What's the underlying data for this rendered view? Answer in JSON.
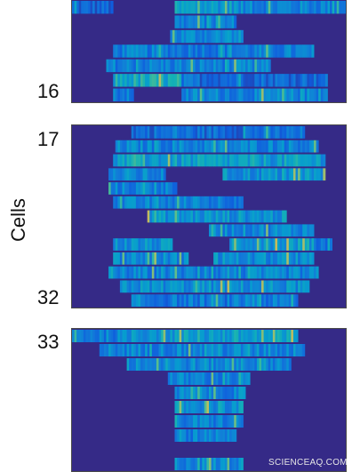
{
  "chart_data": {
    "type": "heatmap",
    "ylabel": "Cells",
    "colormap": "parula",
    "background_color": "#352a87",
    "panels": [
      {
        "row_tick_labels": [
          "16"
        ],
        "rows": [
          {
            "ranges": [
              [
                0.0,
                0.15,
                0.25
              ],
              [
                0.38,
                0.6,
                0.55
              ],
              [
                0.6,
                1.0,
                0.42
              ]
            ]
          },
          {
            "ranges": [
              [
                0.38,
                0.6,
                0.4
              ]
            ]
          },
          {
            "ranges": [
              [
                0.36,
                0.62,
                0.45
              ]
            ]
          },
          {
            "ranges": [
              [
                0.15,
                0.88,
                0.38
              ]
            ]
          },
          {
            "ranges": [
              [
                0.13,
                0.72,
                0.4
              ]
            ]
          },
          {
            "ranges": [
              [
                0.15,
                0.4,
                0.62
              ],
              [
                0.4,
                0.93,
                0.3
              ]
            ]
          },
          {
            "ranges": [
              [
                0.15,
                0.22,
                0.35
              ],
              [
                0.4,
                0.93,
                0.42
              ]
            ]
          }
        ]
      },
      {
        "row_tick_labels": [
          "17",
          "32"
        ],
        "rows": [
          {
            "ranges": [
              [
                0.22,
                0.85,
                0.3
              ]
            ]
          },
          {
            "ranges": [
              [
                0.16,
                0.9,
                0.42
              ]
            ]
          },
          {
            "ranges": [
              [
                0.15,
                0.92,
                0.55
              ]
            ]
          },
          {
            "ranges": [
              [
                0.14,
                0.34,
                0.42
              ],
              [
                0.55,
                0.92,
                0.48
              ]
            ]
          },
          {
            "ranges": [
              [
                0.14,
                0.38,
                0.4
              ]
            ]
          },
          {
            "ranges": [
              [
                0.15,
                0.62,
                0.4
              ]
            ]
          },
          {
            "ranges": [
              [
                0.28,
                0.78,
                0.5
              ]
            ]
          },
          {
            "ranges": [
              [
                0.5,
                0.88,
                0.45
              ]
            ]
          },
          {
            "ranges": [
              [
                0.15,
                0.36,
                0.48
              ],
              [
                0.58,
                0.88,
                0.55
              ],
              [
                0.88,
                0.95,
                0.35
              ]
            ]
          },
          {
            "ranges": [
              [
                0.15,
                0.42,
                0.45
              ],
              [
                0.52,
                0.88,
                0.45
              ]
            ]
          },
          {
            "ranges": [
              [
                0.14,
                0.9,
                0.4
              ]
            ]
          },
          {
            "ranges": [
              [
                0.18,
                0.86,
                0.48
              ]
            ]
          },
          {
            "ranges": [
              [
                0.22,
                0.82,
                0.35
              ]
            ]
          }
        ]
      },
      {
        "row_tick_labels": [
          "33"
        ],
        "rows": [
          {
            "ranges": [
              [
                0.0,
                0.22,
                0.4
              ],
              [
                0.22,
                0.82,
                0.55
              ]
            ]
          },
          {
            "ranges": [
              [
                0.1,
                0.85,
                0.42
              ]
            ]
          },
          {
            "ranges": [
              [
                0.2,
                0.8,
                0.45
              ]
            ]
          },
          {
            "ranges": [
              [
                0.35,
                0.65,
                0.4
              ]
            ]
          },
          {
            "ranges": [
              [
                0.38,
                0.63,
                0.42
              ]
            ]
          },
          {
            "ranges": [
              [
                0.38,
                0.62,
                0.5
              ]
            ]
          },
          {
            "ranges": [
              [
                0.38,
                0.62,
                0.4
              ]
            ]
          },
          {
            "ranges": [
              [
                0.38,
                0.6,
                0.38
              ]
            ]
          },
          {
            "ranges": []
          },
          {
            "ranges": [
              [
                0.38,
                0.62,
                0.45
              ]
            ]
          }
        ]
      }
    ]
  },
  "watermark": "SCIENCEAQ.COM"
}
